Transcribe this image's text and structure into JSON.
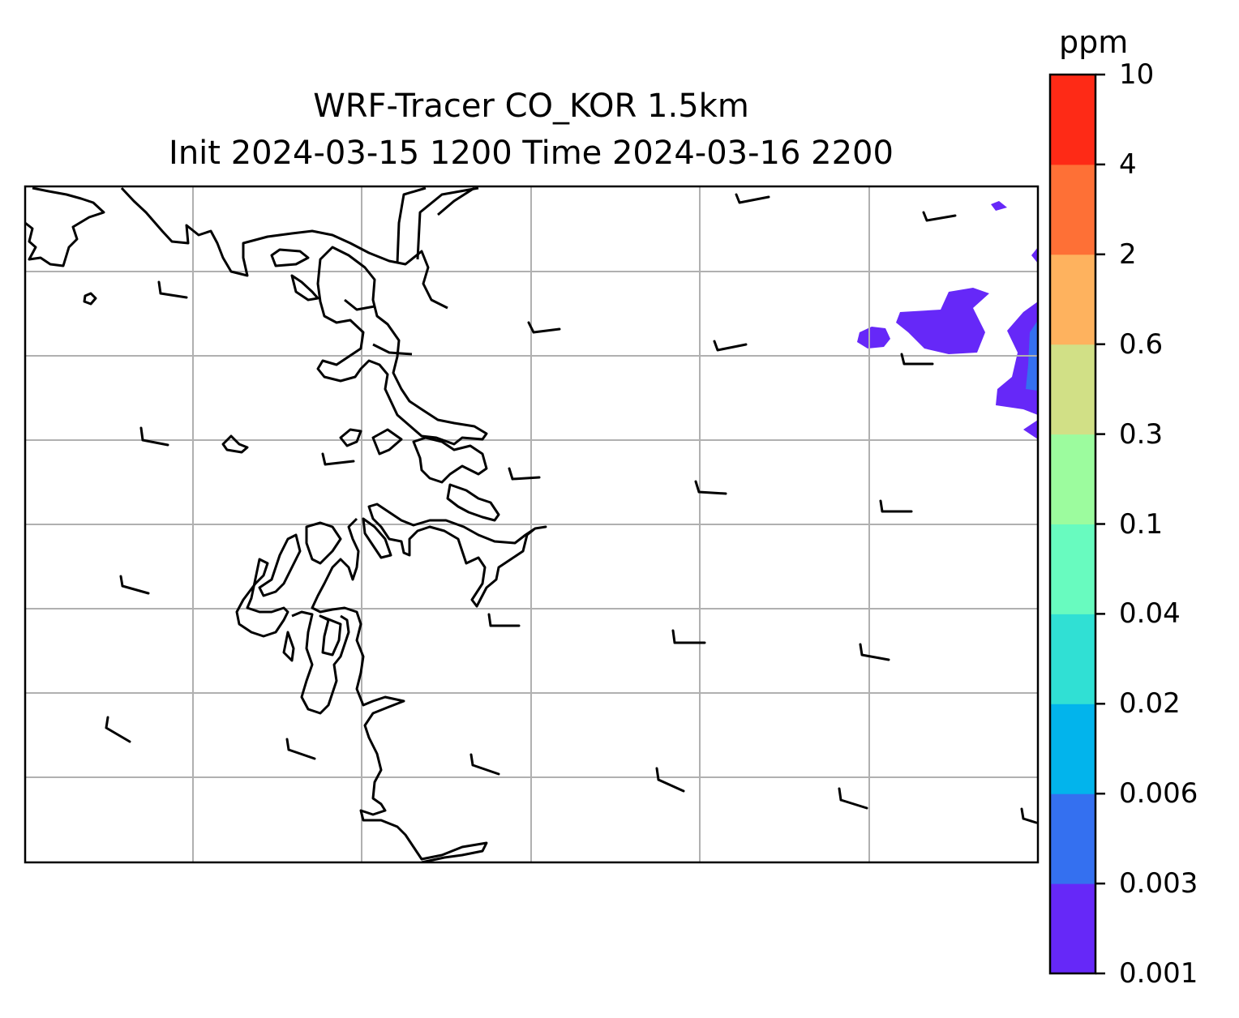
{
  "title_line1": "WRF-Tracer CO_KOR 1.5km",
  "title_line2": "Init 2024-03-15 1200 Time 2024-03-16 2200",
  "colorbar": {
    "unit": "ppm",
    "levels": [
      "0.001",
      "0.003",
      "0.006",
      "0.02",
      "0.04",
      "0.1",
      "0.3",
      "0.6",
      "2",
      "4",
      "10"
    ],
    "colors": [
      "#6628f8",
      "#3470f0",
      "#02b4ec",
      "#30e0d4",
      "#68fbbf",
      "#9cfc9e",
      "#d1e086",
      "#feb25e",
      "#fe7036",
      "#fe2a16"
    ]
  },
  "map": {
    "gridlines": true,
    "gridline_color": "#b0b0b0",
    "coastline_color": "#000000",
    "tracer_field_color": "#6628f8",
    "tracer_field_inner_color": "#3470f0"
  }
}
